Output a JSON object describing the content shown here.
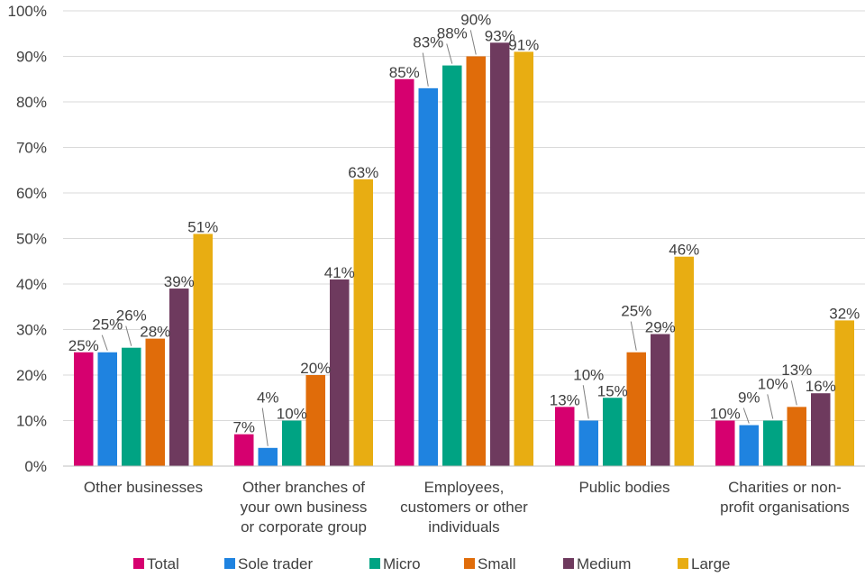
{
  "chart_data": {
    "type": "bar",
    "categories": [
      [
        "Other businesses"
      ],
      [
        "Other branches of",
        "your own business",
        "or corporate group"
      ],
      [
        "Employees,",
        "customers or other",
        "individuals"
      ],
      [
        "Public bodies"
      ],
      [
        "Charities or non-",
        "profit organisations"
      ]
    ],
    "series": [
      {
        "name": "Total",
        "color": "#d6006f",
        "values": [
          25,
          7,
          85,
          13,
          10
        ],
        "labels": [
          "25%",
          "7%",
          "85%",
          "13%",
          "10%"
        ]
      },
      {
        "name": "Sole trader",
        "color": "#1f83e0",
        "values": [
          25,
          4,
          83,
          10,
          9
        ],
        "labels": [
          "25%",
          "4%",
          "83%",
          "10%",
          "9%"
        ]
      },
      {
        "name": "Micro",
        "color": "#00a383",
        "values": [
          26,
          10,
          88,
          15,
          10
        ],
        "labels": [
          "26%",
          "10%",
          "88%",
          "15%",
          "10%"
        ]
      },
      {
        "name": "Small",
        "color": "#e06c0a",
        "values": [
          28,
          20,
          90,
          25,
          13
        ],
        "labels": [
          "28%",
          "20%",
          "90%",
          "25%",
          "13%"
        ]
      },
      {
        "name": "Medium",
        "color": "#6e3a5e",
        "values": [
          39,
          41,
          93,
          29,
          16
        ],
        "labels": [
          "39%",
          "41%",
          "93%",
          "29%",
          "16%"
        ]
      },
      {
        "name": "Large",
        "color": "#e8ad12",
        "values": [
          51,
          63,
          91,
          46,
          32
        ],
        "labels": [
          "51%",
          "63%",
          "91%",
          "46%",
          "32%"
        ]
      }
    ],
    "yticks": [
      "0%",
      "10%",
      "20%",
      "30%",
      "40%",
      "50%",
      "60%",
      "70%",
      "80%",
      "90%",
      "100%"
    ],
    "ylim": [
      0,
      100
    ],
    "title": "",
    "xlabel": "",
    "ylabel": "",
    "legend_position": "bottom",
    "grid": true
  }
}
